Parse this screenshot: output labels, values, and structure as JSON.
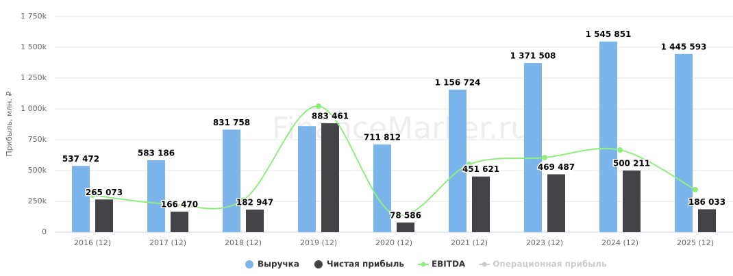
{
  "chart_data": {
    "type": "bar",
    "watermark": "FinanceMarker.ru",
    "y_label": "Прибыль, млн. ₽",
    "categories": [
      "2016 (12)",
      "2017 (12)",
      "2018 (12)",
      "2019 (12)",
      "2020 (12)",
      "2021 (12)",
      "2023 (12)",
      "2024 (12)",
      "2025 (12)"
    ],
    "ylim": [
      0,
      1750000
    ],
    "yticks": [
      0,
      {
        "value": 250000,
        "label": "250k"
      },
      {
        "value": 500000,
        "label": "500k"
      },
      {
        "value": 750000,
        "label": "750k"
      },
      {
        "value": 1000000,
        "label": "1 000k"
      },
      {
        "value": 1250000,
        "label": "1 250k"
      },
      {
        "value": 1500000,
        "label": "1 500k"
      },
      {
        "value": 1750000,
        "label": "1 750k"
      }
    ],
    "grid": true,
    "series": [
      {
        "name": "Выручка",
        "type": "bar",
        "color": "#7cb5ec",
        "visible": true,
        "values": [
          537472,
          583186,
          831758,
          860000,
          711812,
          1156724,
          1371508,
          1545851,
          1445593
        ],
        "value_labels": [
          "537 472",
          "583 186",
          "831 758",
          null,
          "711 812",
          "1 156 724",
          "1 371 508",
          "1 545 851",
          "1 445 593"
        ]
      },
      {
        "name": "Чистая прибыль",
        "type": "bar",
        "color": "#434348",
        "visible": true,
        "values": [
          265073,
          166470,
          182947,
          883461,
          78586,
          451621,
          469487,
          500211,
          186033
        ],
        "value_labels": [
          "265 073",
          "166 470",
          "182 947",
          "883 461",
          "78 586",
          "451 621",
          "469 487",
          "500 211",
          "186 033"
        ]
      },
      {
        "name": "EBITDA",
        "type": "line",
        "color": "#90ed7d",
        "visible": true,
        "values": [
          300000,
          230000,
          260000,
          1022000,
          145000,
          550000,
          605000,
          667000,
          345000
        ]
      },
      {
        "name": "Операционная прибыль",
        "type": "line",
        "color": "#cccccc",
        "visible": false,
        "values": [
          null,
          null,
          null,
          null,
          null,
          null,
          null,
          null,
          null
        ]
      }
    ]
  }
}
